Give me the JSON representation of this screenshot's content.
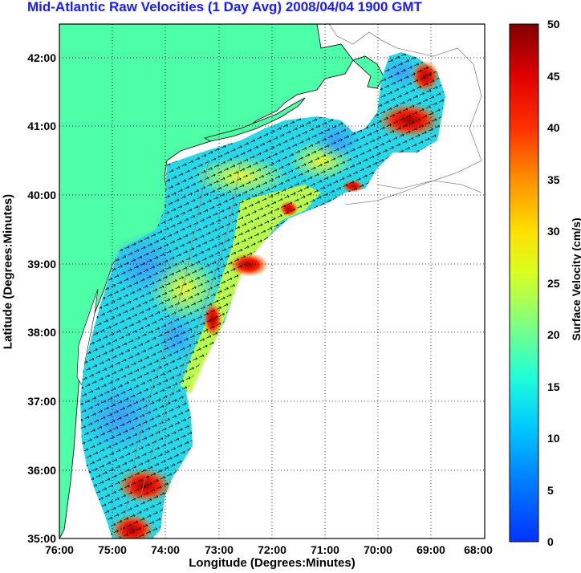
{
  "title": "Mid-Atlantic Raw Velocities (1 Day Avg) 2008/04/04 1900 GMT",
  "x_axis": {
    "label": "Longitude (Degrees:Minutes)",
    "ticks": [
      "76:00",
      "75:00",
      "74:00",
      "73:00",
      "72:00",
      "71:00",
      "70:00",
      "69:00",
      "68:00"
    ]
  },
  "y_axis": {
    "label": "Latitude (Degrees:Minutes)",
    "ticks": [
      "35:00",
      "36:00",
      "37:00",
      "38:00",
      "39:00",
      "40:00",
      "41:00",
      "42:00"
    ]
  },
  "colorbar": {
    "label": "Surface Velocity (cm/s)",
    "ticks": [
      "0",
      "5",
      "10",
      "15",
      "20",
      "25",
      "30",
      "35",
      "40",
      "45",
      "50"
    ],
    "range": [
      0,
      50
    ]
  },
  "colors": {
    "land": "#4dffa6",
    "title": "#1a1aff"
  }
}
